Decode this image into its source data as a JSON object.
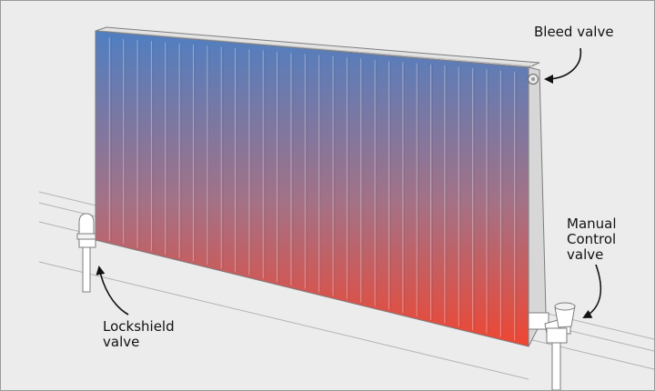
{
  "labels": {
    "bleed_valve": "Bleed valve",
    "manual_control_valve": [
      "Manual",
      "Control",
      "valve"
    ],
    "lockshield_valve": [
      "Lockshield",
      "valve"
    ]
  },
  "colors": {
    "background": "#ececec",
    "hot": "#4f7fc2",
    "cold": "#ef4632",
    "body": "#d7d7d7",
    "outline": "#7d7d7d"
  },
  "diagram": {
    "subject": "radiator",
    "fin_count": 31
  }
}
